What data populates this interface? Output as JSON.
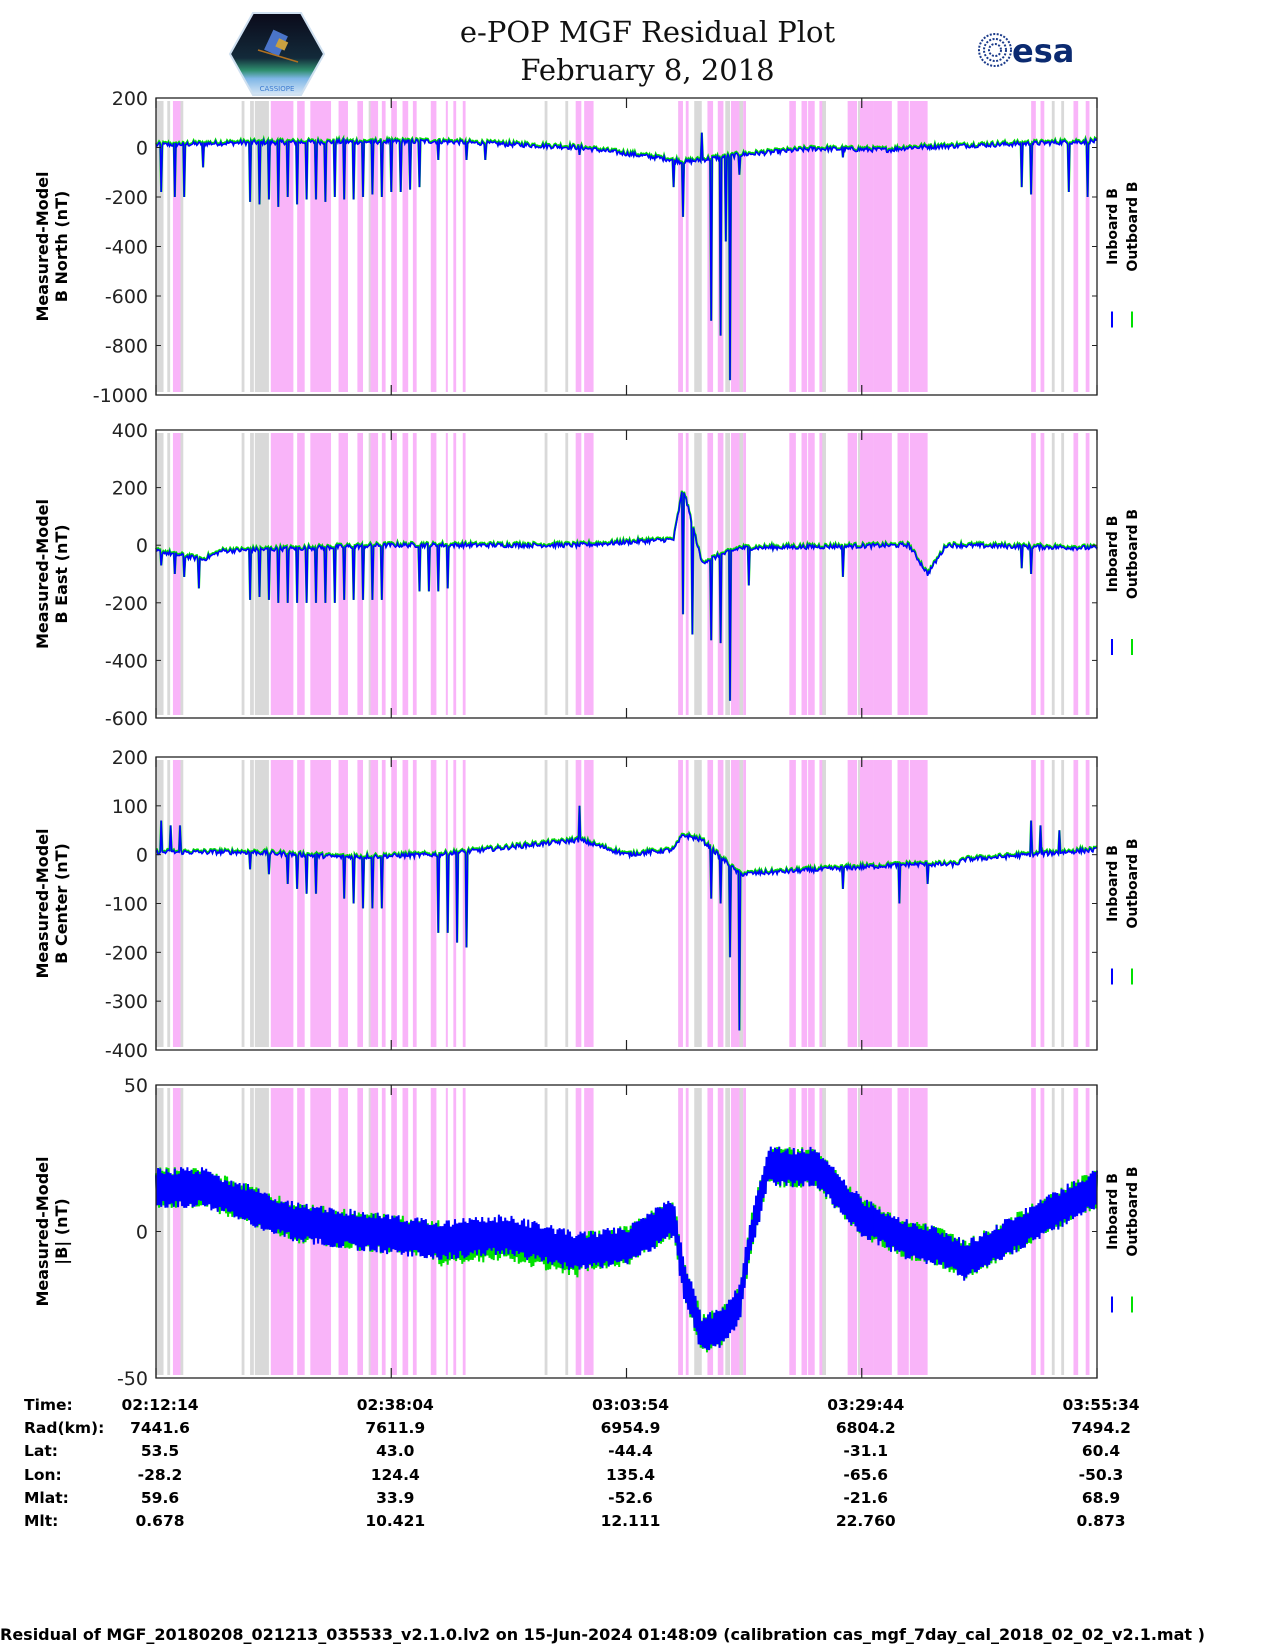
{
  "header": {
    "title_line1": "e-POP MGF Residual Plot",
    "title_line2": "February 8, 2018",
    "logo_left": "cassiope-mission-logo",
    "logo_left_caption": "CASSIOPE",
    "logo_right": "esa-logo",
    "logo_right_text": "esa"
  },
  "colors": {
    "inboard": "#0000ff",
    "outboard": "#00e000",
    "gray_band": "#d9d9d9",
    "pink_band": "#f9b4f9",
    "axis": "#222222"
  },
  "chart_data": [
    {
      "type": "line",
      "title": "",
      "ylabel": [
        "Measured-Model",
        "B North (nT)"
      ],
      "ylim": [
        -1000,
        200
      ],
      "yticks": [
        200,
        0,
        -200,
        -400,
        -600,
        -800,
        -1000
      ],
      "legend": [
        "Inboard B",
        "Outboard B"
      ],
      "legend_placement": "right-outside",
      "baseline_trend": [
        [
          0,
          10
        ],
        [
          0.1,
          20
        ],
        [
          0.3,
          25
        ],
        [
          0.45,
          0
        ],
        [
          0.55,
          -50
        ],
        [
          0.56,
          -60
        ],
        [
          0.62,
          -30
        ],
        [
          0.7,
          -5
        ],
        [
          0.78,
          -10
        ],
        [
          0.8,
          0
        ],
        [
          1,
          25
        ]
      ],
      "spikes": [
        [
          0.005,
          -180
        ],
        [
          0.02,
          -200
        ],
        [
          0.03,
          -200
        ],
        [
          0.05,
          -80
        ],
        [
          0.1,
          -220
        ],
        [
          0.11,
          -230
        ],
        [
          0.12,
          -210
        ],
        [
          0.13,
          -240
        ],
        [
          0.14,
          -200
        ],
        [
          0.15,
          -230
        ],
        [
          0.16,
          -210
        ],
        [
          0.17,
          -210
        ],
        [
          0.18,
          -220
        ],
        [
          0.19,
          -200
        ],
        [
          0.2,
          -210
        ],
        [
          0.21,
          -210
        ],
        [
          0.22,
          -200
        ],
        [
          0.23,
          -190
        ],
        [
          0.24,
          -200
        ],
        [
          0.25,
          -180
        ],
        [
          0.26,
          -180
        ],
        [
          0.27,
          -170
        ],
        [
          0.28,
          -160
        ],
        [
          0.3,
          -50
        ],
        [
          0.33,
          -50
        ],
        [
          0.35,
          -50
        ],
        [
          0.45,
          -30
        ],
        [
          0.55,
          -160
        ],
        [
          0.56,
          -280
        ],
        [
          0.58,
          60
        ],
        [
          0.59,
          -700
        ],
        [
          0.6,
          -760
        ],
        [
          0.605,
          -380
        ],
        [
          0.61,
          -940
        ],
        [
          0.62,
          -110
        ],
        [
          0.73,
          -40
        ],
        [
          0.92,
          -160
        ],
        [
          0.93,
          -190
        ],
        [
          0.97,
          -180
        ],
        [
          0.99,
          -200
        ]
      ]
    },
    {
      "type": "line",
      "title": "",
      "ylabel": [
        "Measured-Model",
        "B East (nT)"
      ],
      "ylim": [
        -600,
        400
      ],
      "yticks": [
        400,
        200,
        0,
        -200,
        -400,
        -600
      ],
      "legend": [
        "Inboard B",
        "Outboard B"
      ],
      "legend_placement": "right-outside",
      "baseline_trend": [
        [
          0,
          -20
        ],
        [
          0.05,
          -50
        ],
        [
          0.07,
          -20
        ],
        [
          0.25,
          0
        ],
        [
          0.45,
          0
        ],
        [
          0.55,
          20
        ],
        [
          0.56,
          200
        ],
        [
          0.58,
          -60
        ],
        [
          0.62,
          -10
        ],
        [
          0.8,
          0
        ],
        [
          0.82,
          -100
        ],
        [
          0.84,
          0
        ],
        [
          1,
          -10
        ]
      ],
      "spikes": [
        [
          0.005,
          -70
        ],
        [
          0.02,
          -100
        ],
        [
          0.03,
          -110
        ],
        [
          0.045,
          -150
        ],
        [
          0.1,
          -190
        ],
        [
          0.11,
          -180
        ],
        [
          0.12,
          -190
        ],
        [
          0.13,
          -200
        ],
        [
          0.14,
          -200
        ],
        [
          0.15,
          -200
        ],
        [
          0.16,
          -200
        ],
        [
          0.17,
          -200
        ],
        [
          0.18,
          -200
        ],
        [
          0.19,
          -200
        ],
        [
          0.2,
          -190
        ],
        [
          0.21,
          -190
        ],
        [
          0.22,
          -190
        ],
        [
          0.23,
          -190
        ],
        [
          0.24,
          -190
        ],
        [
          0.28,
          -160
        ],
        [
          0.29,
          -160
        ],
        [
          0.3,
          -160
        ],
        [
          0.31,
          -150
        ],
        [
          0.56,
          -240
        ],
        [
          0.57,
          -310
        ],
        [
          0.59,
          -330
        ],
        [
          0.6,
          -340
        ],
        [
          0.61,
          -540
        ],
        [
          0.63,
          -140
        ],
        [
          0.73,
          -110
        ],
        [
          0.92,
          -80
        ],
        [
          0.93,
          -100
        ]
      ]
    },
    {
      "type": "line",
      "title": "",
      "ylabel": [
        "Measured-Model",
        "B Center (nT)"
      ],
      "ylim": [
        -400,
        200
      ],
      "yticks": [
        200,
        100,
        0,
        -100,
        -200,
        -300,
        -400
      ],
      "legend": [
        "Inboard B",
        "Outboard B"
      ],
      "legend_placement": "right-outside",
      "baseline_trend": [
        [
          0,
          5
        ],
        [
          0.1,
          5
        ],
        [
          0.2,
          -5
        ],
        [
          0.3,
          0
        ],
        [
          0.45,
          30
        ],
        [
          0.5,
          0
        ],
        [
          0.55,
          10
        ],
        [
          0.56,
          40
        ],
        [
          0.58,
          30
        ],
        [
          0.62,
          -40
        ],
        [
          0.8,
          -20
        ],
        [
          0.85,
          -20
        ],
        [
          0.86,
          -10
        ],
        [
          1,
          10
        ]
      ],
      "spikes": [
        [
          0.005,
          70
        ],
        [
          0.015,
          60
        ],
        [
          0.025,
          60
        ],
        [
          0.1,
          -30
        ],
        [
          0.12,
          -40
        ],
        [
          0.14,
          -60
        ],
        [
          0.15,
          -70
        ],
        [
          0.16,
          -80
        ],
        [
          0.17,
          -80
        ],
        [
          0.2,
          -90
        ],
        [
          0.21,
          -100
        ],
        [
          0.22,
          -110
        ],
        [
          0.23,
          -110
        ],
        [
          0.24,
          -110
        ],
        [
          0.3,
          -160
        ],
        [
          0.31,
          -160
        ],
        [
          0.32,
          -180
        ],
        [
          0.33,
          -190
        ],
        [
          0.45,
          100
        ],
        [
          0.59,
          -90
        ],
        [
          0.6,
          -100
        ],
        [
          0.61,
          -210
        ],
        [
          0.62,
          -360
        ],
        [
          0.73,
          -70
        ],
        [
          0.79,
          -100
        ],
        [
          0.82,
          -60
        ],
        [
          0.93,
          70
        ],
        [
          0.94,
          60
        ],
        [
          0.96,
          50
        ]
      ]
    },
    {
      "type": "line",
      "title": "",
      "ylabel": [
        "Measured-Model",
        "|B| (nT)"
      ],
      "ylim": [
        -50,
        50
      ],
      "yticks": [
        50,
        0,
        -50
      ],
      "legend": [
        "Inboard B",
        "Outboard B"
      ],
      "legend_placement": "right-outside",
      "baseline_trend": [
        [
          0,
          15
        ],
        [
          0.05,
          15
        ],
        [
          0.15,
          3
        ],
        [
          0.3,
          -3
        ],
        [
          0.37,
          -1
        ],
        [
          0.45,
          -7
        ],
        [
          0.5,
          -5
        ],
        [
          0.55,
          5
        ],
        [
          0.56,
          -15
        ],
        [
          0.58,
          -35
        ],
        [
          0.6,
          -33
        ],
        [
          0.62,
          -25
        ],
        [
          0.63,
          -5
        ],
        [
          0.65,
          22
        ],
        [
          0.7,
          22
        ],
        [
          0.75,
          5
        ],
        [
          0.8,
          -3
        ],
        [
          0.83,
          -5
        ],
        [
          0.86,
          -10
        ],
        [
          0.9,
          -3
        ],
        [
          1,
          15
        ]
      ],
      "band_halfwidth": 7,
      "spikes": []
    }
  ],
  "time_axis": {
    "ticks": [
      "02:12:14",
      "02:38:04",
      "03:03:54",
      "03:29:44",
      "03:55:34"
    ],
    "start": "02:12:14",
    "end": "03:55:34"
  },
  "shaded_intervals": {
    "gray": [
      [
        0.0,
        0.008
      ],
      [
        0.012,
        0.015
      ],
      [
        0.026,
        0.029
      ],
      [
        0.091,
        0.094
      ],
      [
        0.1,
        0.104
      ],
      [
        0.105,
        0.12
      ],
      [
        0.199,
        0.202
      ],
      [
        0.226,
        0.229
      ],
      [
        0.413,
        0.416
      ],
      [
        0.435,
        0.438
      ],
      [
        0.555,
        0.558
      ],
      [
        0.572,
        0.58
      ],
      [
        0.605,
        0.61
      ],
      [
        0.619,
        0.624
      ],
      [
        0.688,
        0.691
      ],
      [
        0.706,
        0.712
      ],
      [
        0.746,
        0.752
      ],
      [
        0.952,
        0.955
      ],
      [
        0.962,
        0.965
      ]
    ],
    "pink": [
      [
        0.018,
        0.026
      ],
      [
        0.122,
        0.146
      ],
      [
        0.15,
        0.158
      ],
      [
        0.164,
        0.186
      ],
      [
        0.194,
        0.204
      ],
      [
        0.214,
        0.22
      ],
      [
        0.228,
        0.236
      ],
      [
        0.24,
        0.244
      ],
      [
        0.25,
        0.256
      ],
      [
        0.262,
        0.268
      ],
      [
        0.273,
        0.277
      ],
      [
        0.292,
        0.298
      ],
      [
        0.308,
        0.31
      ],
      [
        0.316,
        0.319
      ],
      [
        0.326,
        0.329
      ],
      [
        0.446,
        0.452
      ],
      [
        0.455,
        0.465
      ],
      [
        0.555,
        0.56
      ],
      [
        0.563,
        0.566
      ],
      [
        0.586,
        0.592
      ],
      [
        0.597,
        0.603
      ],
      [
        0.611,
        0.62
      ],
      [
        0.624,
        0.627
      ],
      [
        0.673,
        0.68
      ],
      [
        0.686,
        0.692
      ],
      [
        0.693,
        0.7
      ],
      [
        0.705,
        0.708
      ],
      [
        0.735,
        0.745
      ],
      [
        0.748,
        0.762
      ],
      [
        0.762,
        0.782
      ],
      [
        0.788,
        0.8
      ],
      [
        0.801,
        0.82
      ],
      [
        0.93,
        0.935
      ],
      [
        0.94,
        0.944
      ],
      [
        0.975,
        0.98
      ],
      [
        0.988,
        0.992
      ]
    ]
  },
  "orbit_table": {
    "rows": [
      {
        "label": "Time:",
        "values": [
          "02:12:14",
          "02:38:04",
          "03:03:54",
          "03:29:44",
          "03:55:34"
        ]
      },
      {
        "label": "Rad(km):",
        "values": [
          "7441.6",
          "7611.9",
          "6954.9",
          "6804.2",
          "7494.2"
        ]
      },
      {
        "label": "Lat:",
        "values": [
          "53.5",
          "43.0",
          "-44.4",
          "-31.1",
          "60.4"
        ]
      },
      {
        "label": "Lon:",
        "values": [
          "-28.2",
          "124.4",
          "135.4",
          "-65.6",
          "-50.3"
        ]
      },
      {
        "label": "Mlat:",
        "values": [
          "59.6",
          "33.9",
          "-52.6",
          "-21.6",
          "68.9"
        ]
      },
      {
        "label": "Mlt:",
        "values": [
          "0.678",
          "10.421",
          "12.111",
          "22.760",
          "0.873"
        ]
      }
    ]
  },
  "footer": {
    "text": "Residual of MGF_20180208_021213_035533_v2.1.0.lv2 on 15-Jun-2024 01:48:09 (calibration cas_mgf_7day_cal_2018_02_02_v2.1.mat )"
  }
}
